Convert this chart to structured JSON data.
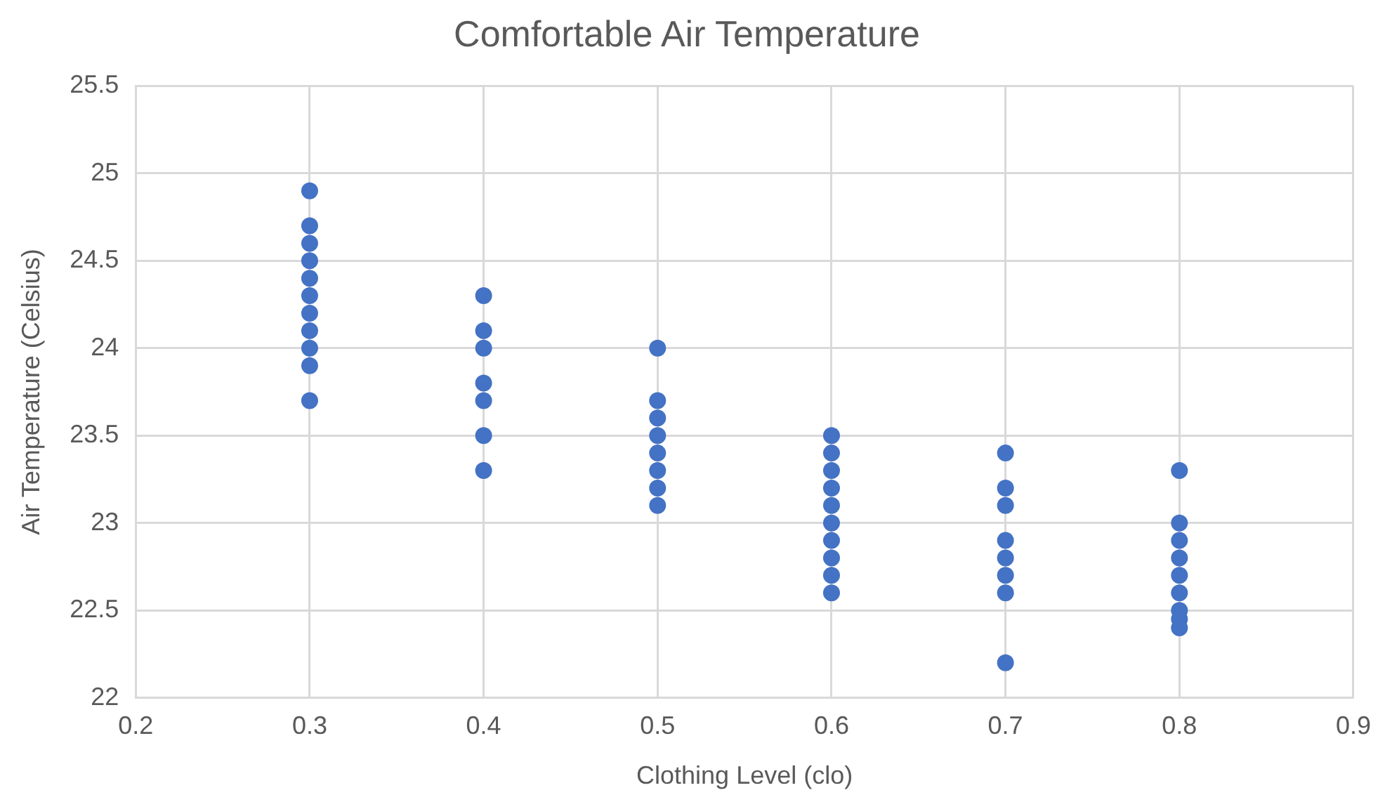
{
  "chart_data": {
    "type": "scatter",
    "title": "Comfortable Air Temperature",
    "xlabel": "Clothing Level (clo)",
    "ylabel": "Air Temperature (Celsius)",
    "x": [
      0.3,
      0.3,
      0.3,
      0.3,
      0.3,
      0.3,
      0.3,
      0.3,
      0.3,
      0.3,
      0.3,
      0.4,
      0.4,
      0.4,
      0.4,
      0.4,
      0.4,
      0.4,
      0.5,
      0.5,
      0.5,
      0.5,
      0.5,
      0.5,
      0.5,
      0.5,
      0.6,
      0.6,
      0.6,
      0.6,
      0.6,
      0.6,
      0.6,
      0.6,
      0.6,
      0.6,
      0.7,
      0.7,
      0.7,
      0.7,
      0.7,
      0.7,
      0.7,
      0.7,
      0.8,
      0.8,
      0.8,
      0.8,
      0.8,
      0.8,
      0.8,
      0.8,
      0.8
    ],
    "series": [
      {
        "color": "#4472c4",
        "values": [
          24.9,
          24.7,
          24.6,
          24.5,
          24.4,
          24.3,
          24.2,
          24.1,
          24.0,
          23.9,
          23.7,
          24.3,
          24.1,
          24.0,
          23.8,
          23.7,
          23.5,
          23.3,
          24.0,
          23.7,
          23.6,
          23.5,
          23.4,
          23.3,
          23.2,
          23.1,
          23.5,
          23.4,
          23.3,
          23.2,
          23.1,
          23.0,
          22.9,
          22.8,
          22.7,
          22.6,
          23.4,
          23.2,
          23.1,
          22.9,
          22.8,
          22.7,
          22.6,
          22.2,
          23.3,
          23.0,
          22.9,
          22.8,
          22.7,
          22.6,
          22.5,
          22.45,
          22.4
        ]
      }
    ],
    "xlim": [
      0.2,
      0.9
    ],
    "xticks": [
      0.2,
      0.3,
      0.4,
      0.5,
      0.6,
      0.7,
      0.8,
      0.9
    ],
    "ylim": [
      22,
      25.5
    ],
    "yticks": [
      22,
      22.5,
      23,
      23.5,
      24,
      24.5,
      25,
      25.5
    ],
    "grid": true,
    "legend": false,
    "marker": "circle"
  }
}
